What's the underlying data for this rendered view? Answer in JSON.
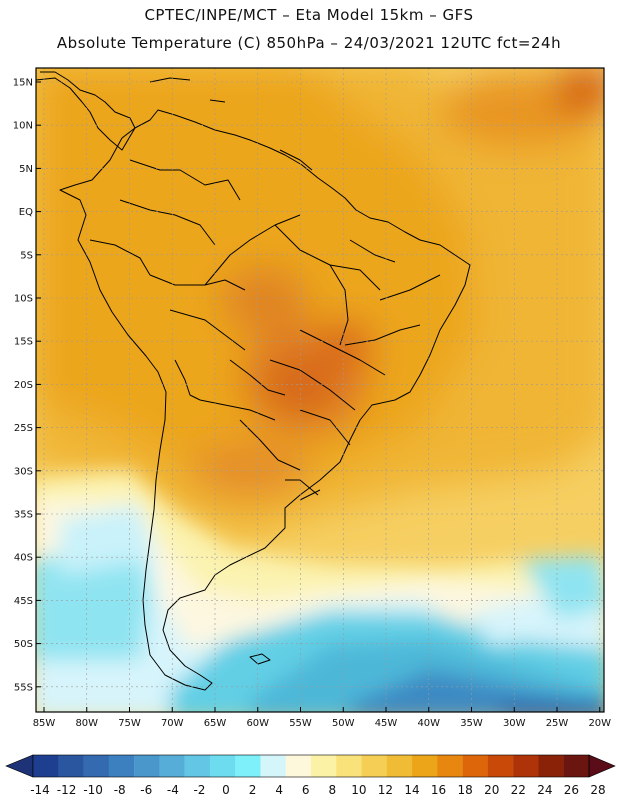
{
  "header": {
    "line1": "CPTEC/INPE/MCT –   Eta Model 15km – GFS",
    "line2": "Absolute Temperature (C) 850hPa – 24/03/2021 12UTC fct=24h"
  },
  "map": {
    "lat_labels": [
      "15N",
      "10N",
      "5N",
      "EQ",
      "5S",
      "10S",
      "15S",
      "20S",
      "25S",
      "30S",
      "35S",
      "40S",
      "45S",
      "50S",
      "55S"
    ],
    "lon_labels": [
      "85W",
      "80W",
      "75W",
      "70W",
      "65W",
      "60W",
      "55W",
      "50W",
      "45W",
      "40W",
      "35W",
      "30W",
      "25W",
      "20W"
    ]
  },
  "colorbar": {
    "labels": [
      "-14",
      "-12",
      "-10",
      "-8",
      "-6",
      "-4",
      "-2",
      "0",
      "2",
      "4",
      "6",
      "8",
      "10",
      "12",
      "14",
      "16",
      "18",
      "20",
      "22",
      "24",
      "26",
      "28"
    ],
    "colors": [
      "#1e3f8f",
      "#2a56a0",
      "#336ab0",
      "#3d80bf",
      "#4a97cc",
      "#56aed8",
      "#62c6e4",
      "#6edcef",
      "#7df0fa",
      "#d4f6fb",
      "#fdf7dc",
      "#fbf2a6",
      "#f9e27a",
      "#f5cf55",
      "#f0bb35",
      "#eca419",
      "#e7870f",
      "#de660a",
      "#c94a08",
      "#ae3308",
      "#8a2208",
      "#6b1510"
    ],
    "end_left": "#1e3278",
    "end_right": "#5a0c18"
  }
}
